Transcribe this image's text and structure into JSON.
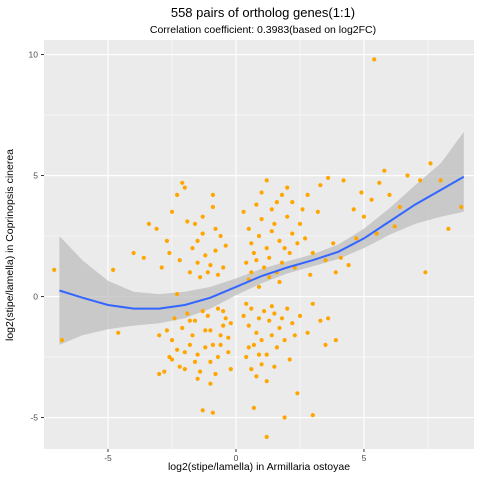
{
  "chart_data": {
    "type": "scatter",
    "title": "558 pairs of ortholog genes(1:1)",
    "subtitle": "Correlation coefficient: 0.3983(based on log2FC)",
    "xlabel": "log2(stipe/lamella) in Armillaria ostoyae",
    "ylabel": "log2(stipe/lamella) in Coprinopsis cinerea",
    "xlim": [
      -7.5,
      9.3
    ],
    "ylim": [
      -6.3,
      10.6
    ],
    "x_ticks": [
      -5,
      0,
      5
    ],
    "y_ticks": [
      -5,
      0,
      5,
      10
    ],
    "grid": true,
    "point_color": "#FFA500",
    "panel_color": "#EBEBEB",
    "smooth_color": "#3366FF",
    "ribbon_color": "#BEBEBE",
    "smooth": {
      "x": [
        -6.9,
        -6.0,
        -5.0,
        -4.0,
        -3.0,
        -2.0,
        -1.0,
        0.0,
        1.0,
        2.0,
        3.0,
        4.0,
        5.0,
        6.0,
        7.0,
        8.0,
        8.9
      ],
      "y": [
        0.25,
        -0.05,
        -0.35,
        -0.5,
        -0.5,
        -0.35,
        -0.05,
        0.4,
        0.85,
        1.2,
        1.5,
        1.85,
        2.4,
        3.1,
        3.8,
        4.4,
        4.95
      ],
      "lower": [
        -2.0,
        -1.6,
        -1.35,
        -1.2,
        -1.1,
        -0.9,
        -0.5,
        0.05,
        0.55,
        0.95,
        1.25,
        1.55,
        2.0,
        2.55,
        3.0,
        3.3,
        3.5
      ],
      "upper": [
        2.5,
        1.5,
        0.65,
        0.2,
        0.1,
        0.2,
        0.4,
        0.75,
        1.15,
        1.45,
        1.75,
        2.15,
        2.8,
        3.65,
        4.6,
        5.5,
        6.8
      ]
    },
    "points": [
      [
        5.4,
        9.8
      ],
      [
        -7.1,
        1.1
      ],
      [
        -6.8,
        -1.8
      ],
      [
        -4.8,
        1.1
      ],
      [
        -4.6,
        -1.5
      ],
      [
        -3.0,
        -3.2
      ],
      [
        -2.8,
        -3.1
      ],
      [
        -2.6,
        -2.5
      ],
      [
        -2.5,
        -1.8
      ],
      [
        -2.3,
        -2.2
      ],
      [
        -2.0,
        -3.0
      ],
      [
        -1.8,
        -1.0
      ],
      [
        -1.6,
        -2.7
      ],
      [
        -1.4,
        -3.1
      ],
      [
        -1.2,
        -2.1
      ],
      [
        -1.0,
        -1.4
      ],
      [
        -0.8,
        -3.2
      ],
      [
        -0.6,
        -2.0
      ],
      [
        -0.5,
        -1.2
      ],
      [
        -0.9,
        -4.8
      ],
      [
        -1.3,
        -4.7
      ],
      [
        -1.5,
        -2.4
      ],
      [
        -1.7,
        -1.6
      ],
      [
        -2.1,
        -1.3
      ],
      [
        -2.4,
        -0.9
      ],
      [
        -1.9,
        -0.7
      ],
      [
        -1.1,
        -0.8
      ],
      [
        -0.7,
        -0.5
      ],
      [
        -0.4,
        -0.9
      ],
      [
        -0.3,
        -1.7
      ],
      [
        -0.7,
        -2.5
      ],
      [
        -1.5,
        -3.4
      ],
      [
        -2.2,
        -2.9
      ],
      [
        -2.7,
        -1.4
      ],
      [
        -1.0,
        -2.7
      ],
      [
        -0.3,
        -2.3
      ],
      [
        -0.2,
        -1.1
      ],
      [
        -0.6,
        -1.6
      ],
      [
        -1.2,
        -1.4
      ],
      [
        -1.8,
        -2.0
      ],
      [
        -2.5,
        -2.6
      ],
      [
        -3.0,
        -1.6
      ],
      [
        -1.3,
        -0.6
      ],
      [
        -0.9,
        -2.0
      ],
      [
        -1.6,
        -1.0
      ],
      [
        -2.0,
        -2.3
      ],
      [
        -0.5,
        -0.6
      ],
      [
        -1.0,
        -3.6
      ],
      [
        -0.2,
        -3.0
      ],
      [
        -2.3,
        0.1
      ],
      [
        -4.0,
        1.8
      ],
      [
        -3.6,
        1.6
      ],
      [
        -3.1,
        2.8
      ],
      [
        -2.9,
        1.2
      ],
      [
        -2.7,
        2.3
      ],
      [
        -2.5,
        3.5
      ],
      [
        -2.3,
        4.2
      ],
      [
        -2.1,
        4.7
      ],
      [
        -1.9,
        3.1
      ],
      [
        -1.7,
        2.0
      ],
      [
        -1.5,
        1.4
      ],
      [
        -1.3,
        2.6
      ],
      [
        -1.1,
        1.0
      ],
      [
        -0.9,
        3.7
      ],
      [
        -0.8,
        1.9
      ],
      [
        -0.6,
        2.5
      ],
      [
        -0.5,
        1.2
      ],
      [
        -0.9,
        4.2
      ],
      [
        -1.4,
        0.8
      ],
      [
        -1.8,
        1.0
      ],
      [
        -2.2,
        1.5
      ],
      [
        -1.2,
        1.7
      ],
      [
        -0.7,
        0.9
      ],
      [
        -1.6,
        3.0
      ],
      [
        -0.4,
        2.1
      ],
      [
        -2.0,
        4.5
      ],
      [
        -0.8,
        2.8
      ],
      [
        -1.0,
        1.3
      ],
      [
        -1.3,
        3.3
      ],
      [
        -3.4,
        3.0
      ],
      [
        -2.6,
        1.8
      ],
      [
        -1.5,
        2.3
      ],
      [
        0.3,
        3.5
      ],
      [
        0.5,
        2.8
      ],
      [
        0.6,
        2.2
      ],
      [
        0.7,
        1.8
      ],
      [
        0.8,
        1.5
      ],
      [
        0.9,
        2.5
      ],
      [
        1.0,
        3.2
      ],
      [
        1.1,
        1.2
      ],
      [
        1.2,
        2.0
      ],
      [
        1.3,
        1.6
      ],
      [
        1.4,
        2.7
      ],
      [
        1.5,
        3.0
      ],
      [
        1.6,
        1.0
      ],
      [
        1.7,
        2.3
      ],
      [
        1.8,
        1.4
      ],
      [
        1.9,
        2.0
      ],
      [
        2.0,
        3.3
      ],
      [
        2.1,
        1.8
      ],
      [
        2.2,
        2.6
      ],
      [
        2.3,
        1.2
      ],
      [
        2.4,
        2.2
      ],
      [
        0.4,
        1.4
      ],
      [
        0.6,
        1.0
      ],
      [
        0.8,
        3.8
      ],
      [
        1.0,
        4.3
      ],
      [
        1.2,
        4.8
      ],
      [
        1.4,
        3.6
      ],
      [
        1.6,
        3.9
      ],
      [
        1.8,
        4.2
      ],
      [
        2.0,
        4.5
      ],
      [
        2.2,
        3.9
      ],
      [
        0.5,
        0.7
      ],
      [
        0.9,
        0.4
      ],
      [
        1.3,
        0.8
      ],
      [
        1.7,
        0.6
      ],
      [
        2.5,
        3.0
      ],
      [
        2.7,
        2.4
      ],
      [
        3.0,
        1.8
      ],
      [
        3.2,
        3.5
      ],
      [
        3.5,
        1.5
      ],
      [
        3.8,
        2.2
      ],
      [
        4.1,
        1.6
      ],
      [
        4.4,
        1.3
      ],
      [
        4.7,
        2.4
      ],
      [
        5.0,
        3.3
      ],
      [
        5.3,
        4.0
      ],
      [
        5.6,
        4.7
      ],
      [
        6.0,
        4.2
      ],
      [
        6.4,
        3.7
      ],
      [
        6.7,
        5.0
      ],
      [
        7.2,
        4.8
      ],
      [
        7.6,
        5.5
      ],
      [
        8.0,
        4.8
      ],
      [
        8.3,
        2.8
      ],
      [
        8.8,
        3.7
      ],
      [
        7.4,
        1.0
      ],
      [
        5.8,
        5.2
      ],
      [
        6.2,
        2.9
      ],
      [
        4.9,
        4.3
      ],
      [
        5.5,
        2.6
      ],
      [
        4.2,
        4.8
      ],
      [
        3.6,
        4.9
      ],
      [
        3.3,
        4.6
      ],
      [
        2.8,
        4.2
      ],
      [
        2.6,
        3.6
      ],
      [
        4.6,
        3.6
      ],
      [
        3.9,
        1.0
      ],
      [
        2.9,
        0.9
      ],
      [
        0.3,
        -0.8
      ],
      [
        0.5,
        -1.2
      ],
      [
        0.6,
        -0.5
      ],
      [
        0.7,
        -2.0
      ],
      [
        0.8,
        -1.5
      ],
      [
        0.9,
        -0.9
      ],
      [
        1.0,
        -1.8
      ],
      [
        1.1,
        -0.6
      ],
      [
        1.2,
        -2.4
      ],
      [
        1.3,
        -1.0
      ],
      [
        1.4,
        -1.6
      ],
      [
        1.5,
        -0.7
      ],
      [
        1.6,
        -2.1
      ],
      [
        1.7,
        -1.3
      ],
      [
        1.8,
        -0.9
      ],
      [
        1.9,
        -1.8
      ],
      [
        2.0,
        -0.5
      ],
      [
        2.1,
        -2.6
      ],
      [
        2.2,
        -1.1
      ],
      [
        2.3,
        -1.6
      ],
      [
        0.4,
        -2.5
      ],
      [
        0.6,
        -3.0
      ],
      [
        0.8,
        -3.3
      ],
      [
        1.0,
        -2.8
      ],
      [
        1.2,
        -3.5
      ],
      [
        0.5,
        -2.1
      ],
      [
        0.9,
        -2.4
      ],
      [
        1.5,
        -2.9
      ],
      [
        2.5,
        -0.8
      ],
      [
        2.8,
        -1.5
      ],
      [
        3.0,
        -0.3
      ],
      [
        3.3,
        -1.0
      ],
      [
        3.6,
        -0.9
      ],
      [
        3.9,
        -1.8
      ],
      [
        3.5,
        -2.0
      ],
      [
        0.7,
        -4.6
      ],
      [
        1.2,
        -5.8
      ],
      [
        1.9,
        -5.0
      ],
      [
        2.4,
        -4.0
      ],
      [
        3.0,
        -4.9
      ],
      [
        1.4,
        -0.4
      ],
      [
        0.4,
        -0.3
      ]
    ]
  }
}
